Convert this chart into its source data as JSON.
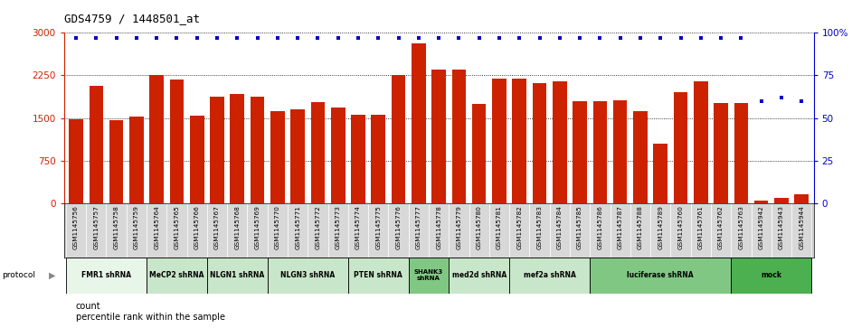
{
  "title": "GDS4759 / 1448501_at",
  "samples": [
    "GSM1145756",
    "GSM1145757",
    "GSM1145758",
    "GSM1145759",
    "GSM1145764",
    "GSM1145765",
    "GSM1145766",
    "GSM1145767",
    "GSM1145768",
    "GSM1145769",
    "GSM1145770",
    "GSM1145771",
    "GSM1145772",
    "GSM1145773",
    "GSM1145774",
    "GSM1145775",
    "GSM1145776",
    "GSM1145777",
    "GSM1145778",
    "GSM1145779",
    "GSM1145780",
    "GSM1145781",
    "GSM1145782",
    "GSM1145783",
    "GSM1145784",
    "GSM1145785",
    "GSM1145786",
    "GSM1145787",
    "GSM1145788",
    "GSM1145789",
    "GSM1145760",
    "GSM1145761",
    "GSM1145762",
    "GSM1145763",
    "GSM1145942",
    "GSM1145943",
    "GSM1145944"
  ],
  "counts": [
    1480,
    2060,
    1470,
    1530,
    2250,
    2180,
    1540,
    1870,
    1930,
    1870,
    1630,
    1650,
    1780,
    1680,
    1560,
    1560,
    2250,
    2820,
    2360,
    2360,
    1750,
    2190,
    2190,
    2120,
    2150,
    1790,
    1790,
    1820,
    1630,
    1050,
    1960,
    2140,
    1760,
    1760,
    50,
    90,
    160
  ],
  "percentiles": [
    97,
    97,
    97,
    97,
    97,
    97,
    97,
    97,
    97,
    97,
    97,
    97,
    97,
    97,
    97,
    97,
    97,
    97,
    97,
    97,
    97,
    97,
    97,
    97,
    97,
    97,
    97,
    97,
    97,
    97,
    97,
    97,
    97,
    97,
    60,
    62,
    60
  ],
  "protocols": [
    {
      "label": "FMR1 shRNA",
      "start": 0,
      "end": 4,
      "color": "#e8f5e9"
    },
    {
      "label": "MeCP2 shRNA",
      "start": 4,
      "end": 7,
      "color": "#c8e6c9"
    },
    {
      "label": "NLGN1 shRNA",
      "start": 7,
      "end": 10,
      "color": "#c8e6c9"
    },
    {
      "label": "NLGN3 shRNA",
      "start": 10,
      "end": 14,
      "color": "#c8e6c9"
    },
    {
      "label": "PTEN shRNA",
      "start": 14,
      "end": 17,
      "color": "#c8e6c9"
    },
    {
      "label": "SHANK3\nshRNA",
      "start": 17,
      "end": 19,
      "color": "#81c784"
    },
    {
      "label": "med2d shRNA",
      "start": 19,
      "end": 22,
      "color": "#c8e6c9"
    },
    {
      "label": "mef2a shRNA",
      "start": 22,
      "end": 26,
      "color": "#c8e6c9"
    },
    {
      "label": "luciferase shRNA",
      "start": 26,
      "end": 33,
      "color": "#81c784"
    },
    {
      "label": "mock",
      "start": 33,
      "end": 37,
      "color": "#4caf50"
    }
  ],
  "ylim_left": [
    0,
    3000
  ],
  "ylim_right": [
    0,
    100
  ],
  "yticks_left": [
    0,
    750,
    1500,
    2250,
    3000
  ],
  "yticks_right": [
    0,
    25,
    50,
    75,
    100
  ],
  "bar_color": "#cc2200",
  "dot_color": "#0000cc"
}
